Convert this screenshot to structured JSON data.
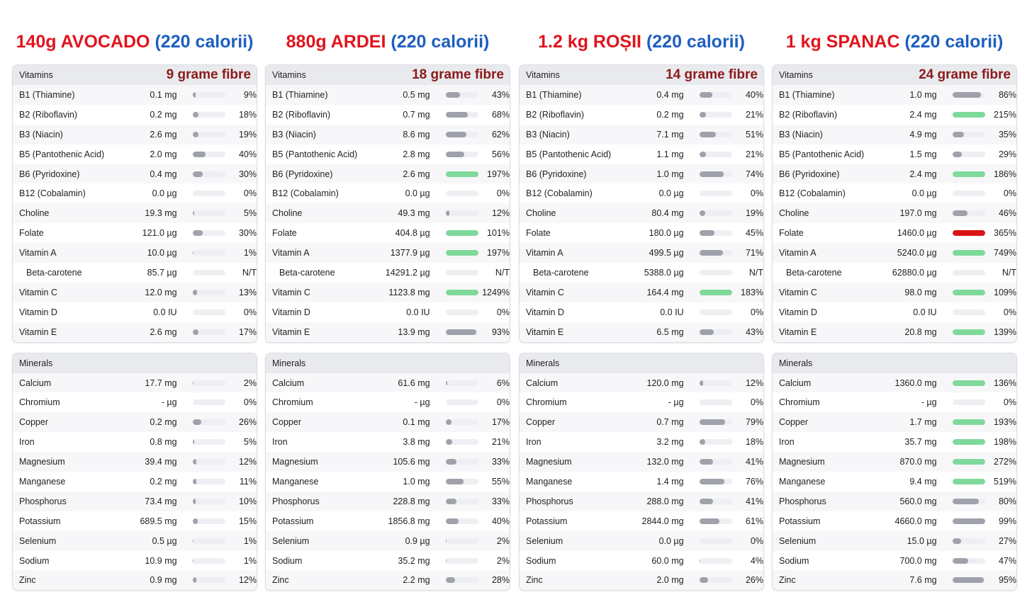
{
  "colors": {
    "food": "#e0141e",
    "calories": "#1e5fbf",
    "fibre": "#8b1a1a",
    "bar_default": "#9fa1ab",
    "bar_high": "#7ed99a",
    "bar_excess": "#d81414"
  },
  "columns": [
    {
      "food": "140g AVOCADO",
      "calories": "(220 calorii)",
      "fibre": "9 grame fibre",
      "vitamins_label": "Vitamins",
      "minerals_label": "Minerals",
      "vitamins": [
        {
          "name": "B1 (Thiamine)",
          "amount": "0.1 mg",
          "pct": "9%",
          "level": 9
        },
        {
          "name": "B2 (Riboflavin)",
          "amount": "0.2 mg",
          "pct": "18%",
          "level": 18
        },
        {
          "name": "B3 (Niacin)",
          "amount": "2.6 mg",
          "pct": "19%",
          "level": 19
        },
        {
          "name": "B5 (Pantothenic Acid)",
          "amount": "2.0 mg",
          "pct": "40%",
          "level": 40
        },
        {
          "name": "B6 (Pyridoxine)",
          "amount": "0.4 mg",
          "pct": "30%",
          "level": 30
        },
        {
          "name": "B12 (Cobalamin)",
          "amount": "0.0 µg",
          "pct": "0%",
          "level": 0
        },
        {
          "name": "Choline",
          "amount": "19.3 mg",
          "pct": "5%",
          "level": 5
        },
        {
          "name": "Folate",
          "amount": "121.0 µg",
          "pct": "30%",
          "level": 30
        },
        {
          "name": "Vitamin A",
          "amount": "10.0 µg",
          "pct": "1%",
          "level": 1
        },
        {
          "name": "Beta-carotene",
          "amount": "85.7 µg",
          "pct": "N/T",
          "level": 0,
          "indent": true
        },
        {
          "name": "Vitamin C",
          "amount": "12.0 mg",
          "pct": "13%",
          "level": 13
        },
        {
          "name": "Vitamin D",
          "amount": "0.0 IU",
          "pct": "0%",
          "level": 0
        },
        {
          "name": "Vitamin E",
          "amount": "2.6 mg",
          "pct": "17%",
          "level": 17
        }
      ],
      "minerals": [
        {
          "name": "Calcium",
          "amount": "17.7 mg",
          "pct": "2%",
          "level": 2
        },
        {
          "name": "Chromium",
          "amount": "- µg",
          "pct": "0%",
          "level": 0
        },
        {
          "name": "Copper",
          "amount": "0.2 mg",
          "pct": "26%",
          "level": 26
        },
        {
          "name": "Iron",
          "amount": "0.8 mg",
          "pct": "5%",
          "level": 5
        },
        {
          "name": "Magnesium",
          "amount": "39.4 mg",
          "pct": "12%",
          "level": 12
        },
        {
          "name": "Manganese",
          "amount": "0.2 mg",
          "pct": "11%",
          "level": 11
        },
        {
          "name": "Phosphorus",
          "amount": "73.4 mg",
          "pct": "10%",
          "level": 10
        },
        {
          "name": "Potassium",
          "amount": "689.5 mg",
          "pct": "15%",
          "level": 15
        },
        {
          "name": "Selenium",
          "amount": "0.5 µg",
          "pct": "1%",
          "level": 1
        },
        {
          "name": "Sodium",
          "amount": "10.9 mg",
          "pct": "1%",
          "level": 1
        },
        {
          "name": "Zinc",
          "amount": "0.9 mg",
          "pct": "12%",
          "level": 12
        }
      ]
    },
    {
      "food": "880g ARDEI",
      "calories": "(220 calorii)",
      "fibre": "18 grame fibre",
      "vitamins_label": "Vitamins",
      "minerals_label": "Minerals",
      "vitamins": [
        {
          "name": "B1 (Thiamine)",
          "amount": "0.5 mg",
          "pct": "43%",
          "level": 43
        },
        {
          "name": "B2 (Riboflavin)",
          "amount": "0.7 mg",
          "pct": "68%",
          "level": 68
        },
        {
          "name": "B3 (Niacin)",
          "amount": "8.6 mg",
          "pct": "62%",
          "level": 62
        },
        {
          "name": "B5 (Pantothenic Acid)",
          "amount": "2.8 mg",
          "pct": "56%",
          "level": 56
        },
        {
          "name": "B6 (Pyridoxine)",
          "amount": "2.6 mg",
          "pct": "197%",
          "level": 197
        },
        {
          "name": "B12 (Cobalamin)",
          "amount": "0.0 µg",
          "pct": "0%",
          "level": 0
        },
        {
          "name": "Choline",
          "amount": "49.3 mg",
          "pct": "12%",
          "level": 12
        },
        {
          "name": "Folate",
          "amount": "404.8 µg",
          "pct": "101%",
          "level": 101
        },
        {
          "name": "Vitamin A",
          "amount": "1377.9 µg",
          "pct": "197%",
          "level": 197
        },
        {
          "name": "Beta-carotene",
          "amount": "14291.2 µg",
          "pct": "N/T",
          "level": 0,
          "indent": true
        },
        {
          "name": "Vitamin C",
          "amount": "1123.8 mg",
          "pct": "1249%",
          "level": 1249
        },
        {
          "name": "Vitamin D",
          "amount": "0.0 IU",
          "pct": "0%",
          "level": 0
        },
        {
          "name": "Vitamin E",
          "amount": "13.9 mg",
          "pct": "93%",
          "level": 93
        }
      ],
      "minerals": [
        {
          "name": "Calcium",
          "amount": "61.6 mg",
          "pct": "6%",
          "level": 6
        },
        {
          "name": "Chromium",
          "amount": "- µg",
          "pct": "0%",
          "level": 0
        },
        {
          "name": "Copper",
          "amount": "0.1 mg",
          "pct": "17%",
          "level": 17
        },
        {
          "name": "Iron",
          "amount": "3.8 mg",
          "pct": "21%",
          "level": 21
        },
        {
          "name": "Magnesium",
          "amount": "105.6 mg",
          "pct": "33%",
          "level": 33
        },
        {
          "name": "Manganese",
          "amount": "1.0 mg",
          "pct": "55%",
          "level": 55
        },
        {
          "name": "Phosphorus",
          "amount": "228.8 mg",
          "pct": "33%",
          "level": 33
        },
        {
          "name": "Potassium",
          "amount": "1856.8 mg",
          "pct": "40%",
          "level": 40
        },
        {
          "name": "Selenium",
          "amount": "0.9 µg",
          "pct": "2%",
          "level": 2
        },
        {
          "name": "Sodium",
          "amount": "35.2 mg",
          "pct": "2%",
          "level": 2
        },
        {
          "name": "Zinc",
          "amount": "2.2 mg",
          "pct": "28%",
          "level": 28
        }
      ]
    },
    {
      "food": "1.2 kg ROȘII",
      "calories": "(220 calorii)",
      "fibre": "14 grame fibre",
      "vitamins_label": "Vitamins",
      "minerals_label": "Minerals",
      "vitamins": [
        {
          "name": "B1 (Thiamine)",
          "amount": "0.4 mg",
          "pct": "40%",
          "level": 40
        },
        {
          "name": "B2 (Riboflavin)",
          "amount": "0.2 mg",
          "pct": "21%",
          "level": 21
        },
        {
          "name": "B3 (Niacin)",
          "amount": "7.1 mg",
          "pct": "51%",
          "level": 51
        },
        {
          "name": "B5 (Pantothenic Acid)",
          "amount": "1.1 mg",
          "pct": "21%",
          "level": 21
        },
        {
          "name": "B6 (Pyridoxine)",
          "amount": "1.0 mg",
          "pct": "74%",
          "level": 74
        },
        {
          "name": "B12 (Cobalamin)",
          "amount": "0.0 µg",
          "pct": "0%",
          "level": 0
        },
        {
          "name": "Choline",
          "amount": "80.4 mg",
          "pct": "19%",
          "level": 19
        },
        {
          "name": "Folate",
          "amount": "180.0 µg",
          "pct": "45%",
          "level": 45
        },
        {
          "name": "Vitamin A",
          "amount": "499.5 µg",
          "pct": "71%",
          "level": 71
        },
        {
          "name": "Beta-carotene",
          "amount": "5388.0 µg",
          "pct": "N/T",
          "level": 0,
          "indent": true
        },
        {
          "name": "Vitamin C",
          "amount": "164.4 mg",
          "pct": "183%",
          "level": 183
        },
        {
          "name": "Vitamin D",
          "amount": "0.0 IU",
          "pct": "0%",
          "level": 0
        },
        {
          "name": "Vitamin E",
          "amount": "6.5 mg",
          "pct": "43%",
          "level": 43
        }
      ],
      "minerals": [
        {
          "name": "Calcium",
          "amount": "120.0 mg",
          "pct": "12%",
          "level": 12
        },
        {
          "name": "Chromium",
          "amount": "- µg",
          "pct": "0%",
          "level": 0
        },
        {
          "name": "Copper",
          "amount": "0.7 mg",
          "pct": "79%",
          "level": 79
        },
        {
          "name": "Iron",
          "amount": "3.2 mg",
          "pct": "18%",
          "level": 18
        },
        {
          "name": "Magnesium",
          "amount": "132.0 mg",
          "pct": "41%",
          "level": 41
        },
        {
          "name": "Manganese",
          "amount": "1.4 mg",
          "pct": "76%",
          "level": 76
        },
        {
          "name": "Phosphorus",
          "amount": "288.0 mg",
          "pct": "41%",
          "level": 41
        },
        {
          "name": "Potassium",
          "amount": "2844.0 mg",
          "pct": "61%",
          "level": 61
        },
        {
          "name": "Selenium",
          "amount": "0.0 µg",
          "pct": "0%",
          "level": 0
        },
        {
          "name": "Sodium",
          "amount": "60.0 mg",
          "pct": "4%",
          "level": 4
        },
        {
          "name": "Zinc",
          "amount": "2.0 mg",
          "pct": "26%",
          "level": 26
        }
      ]
    },
    {
      "food": "1 kg SPANAC",
      "calories": "(220 calorii)",
      "fibre": "24 grame fibre",
      "vitamins_label": "Vitamins",
      "minerals_label": "Minerals",
      "vitamins": [
        {
          "name": "B1 (Thiamine)",
          "amount": "1.0 mg",
          "pct": "86%",
          "level": 86
        },
        {
          "name": "B2 (Riboflavin)",
          "amount": "2.4 mg",
          "pct": "215%",
          "level": 215
        },
        {
          "name": "B3 (Niacin)",
          "amount": "4.9 mg",
          "pct": "35%",
          "level": 35
        },
        {
          "name": "B5 (Pantothenic Acid)",
          "amount": "1.5 mg",
          "pct": "29%",
          "level": 29
        },
        {
          "name": "B6 (Pyridoxine)",
          "amount": "2.4 mg",
          "pct": "186%",
          "level": 186
        },
        {
          "name": "B12 (Cobalamin)",
          "amount": "0.0 µg",
          "pct": "0%",
          "level": 0
        },
        {
          "name": "Choline",
          "amount": "197.0 mg",
          "pct": "46%",
          "level": 46
        },
        {
          "name": "Folate",
          "amount": "1460.0 µg",
          "pct": "365%",
          "level": 365,
          "excess": true
        },
        {
          "name": "Vitamin A",
          "amount": "5240.0 µg",
          "pct": "749%",
          "level": 749
        },
        {
          "name": "Beta-carotene",
          "amount": "62880.0 µg",
          "pct": "N/T",
          "level": 0,
          "indent": true
        },
        {
          "name": "Vitamin C",
          "amount": "98.0 mg",
          "pct": "109%",
          "level": 109
        },
        {
          "name": "Vitamin D",
          "amount": "0.0 IU",
          "pct": "0%",
          "level": 0
        },
        {
          "name": "Vitamin E",
          "amount": "20.8 mg",
          "pct": "139%",
          "level": 139
        }
      ],
      "minerals": [
        {
          "name": "Calcium",
          "amount": "1360.0 mg",
          "pct": "136%",
          "level": 136
        },
        {
          "name": "Chromium",
          "amount": "- µg",
          "pct": "0%",
          "level": 0
        },
        {
          "name": "Copper",
          "amount": "1.7 mg",
          "pct": "193%",
          "level": 193
        },
        {
          "name": "Iron",
          "amount": "35.7 mg",
          "pct": "198%",
          "level": 198
        },
        {
          "name": "Magnesium",
          "amount": "870.0 mg",
          "pct": "272%",
          "level": 272
        },
        {
          "name": "Manganese",
          "amount": "9.4 mg",
          "pct": "519%",
          "level": 519
        },
        {
          "name": "Phosphorus",
          "amount": "560.0 mg",
          "pct": "80%",
          "level": 80
        },
        {
          "name": "Potassium",
          "amount": "4660.0 mg",
          "pct": "99%",
          "level": 99
        },
        {
          "name": "Selenium",
          "amount": "15.0 µg",
          "pct": "27%",
          "level": 27
        },
        {
          "name": "Sodium",
          "amount": "700.0 mg",
          "pct": "47%",
          "level": 47
        },
        {
          "name": "Zinc",
          "amount": "7.6 mg",
          "pct": "95%",
          "level": 95
        }
      ]
    }
  ]
}
